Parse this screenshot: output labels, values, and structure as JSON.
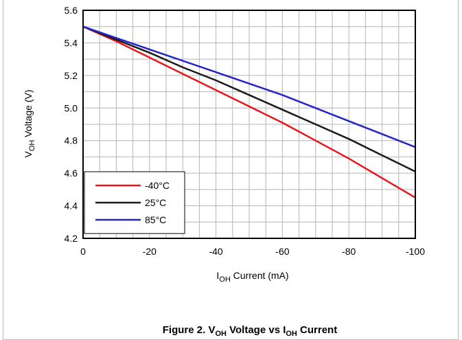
{
  "chart_data": {
    "type": "line",
    "title": "",
    "caption": {
      "prefix": "Figure 2. V",
      "sub1": "OH",
      "mid": " Voltage vs I",
      "sub2": "OH",
      "suffix": " Current"
    },
    "xlabel": {
      "main": "I",
      "sub": "OH",
      "rest": " Current (mA)"
    },
    "ylabel": {
      "main": "V",
      "sub": "OH",
      "rest": " Voltage (V)"
    },
    "xlim": [
      0,
      -100
    ],
    "ylim": [
      4.2,
      5.6
    ],
    "x_ticks": [
      0,
      -20,
      -40,
      -60,
      -80,
      -100
    ],
    "x_tick_labels": [
      "0",
      "-20",
      "-40",
      "-60",
      "-80",
      "-100"
    ],
    "y_ticks": [
      4.2,
      4.4,
      4.6,
      4.8,
      5.0,
      5.2,
      5.4,
      5.6
    ],
    "y_tick_labels": [
      "4.2",
      "4.4",
      "4.6",
      "4.8",
      "5.0",
      "5.2",
      "5.4",
      "5.6"
    ],
    "grid": true,
    "legend_position": "bottom-left",
    "x": [
      0,
      -10,
      -20,
      -30,
      -40,
      -50,
      -60,
      -70,
      -80,
      -90,
      -100
    ],
    "series": [
      {
        "name": "-40°C",
        "color": "#e8161c",
        "values": [
          5.5,
          5.41,
          5.31,
          5.21,
          5.11,
          5.01,
          4.91,
          4.8,
          4.69,
          4.57,
          4.45
        ]
      },
      {
        "name": "25°C",
        "color": "#1a1a1a",
        "values": [
          5.5,
          5.42,
          5.34,
          5.25,
          5.17,
          5.08,
          4.99,
          4.9,
          4.81,
          4.71,
          4.61
        ]
      },
      {
        "name": "85°C",
        "color": "#2424c8",
        "values": [
          5.5,
          5.43,
          5.36,
          5.29,
          5.22,
          5.15,
          5.08,
          5.0,
          4.92,
          4.84,
          4.76
        ]
      }
    ]
  }
}
